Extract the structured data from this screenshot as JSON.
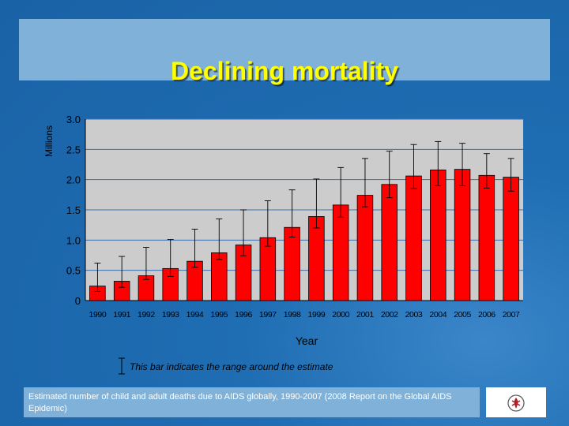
{
  "title": "Declining mortality",
  "legend_text": "This bar indicates the range around the estimate",
  "footer": "Estimated number of child and adult deaths due to AIDS globally, 1990-2007 (2008 Report on the Global AIDS Epidemic)",
  "logo": {
    "icon": "unaids-emblem-icon",
    "color": "#b01e23"
  },
  "colors": {
    "bar": "#ff0000",
    "plot_bg": "#cccccc",
    "grid": "#3d6fb0",
    "title": "#ffff00"
  },
  "chart_data": {
    "type": "bar",
    "title": "Declining mortality",
    "xlabel": "Year",
    "ylabel": "Millions",
    "ylim": [
      0,
      3.0
    ],
    "yticks": [
      "0",
      "0.5",
      "1.0",
      "1.5",
      "2.0",
      "2.5",
      "3.0"
    ],
    "ytick_values": [
      0,
      0.5,
      1.0,
      1.5,
      2.0,
      2.5,
      3.0
    ],
    "grid": true,
    "categories": [
      "1990",
      "1991",
      "1992",
      "1993",
      "1994",
      "1995",
      "1996",
      "1997",
      "1998",
      "1999",
      "2000",
      "2001",
      "2002",
      "2003",
      "2004",
      "2005",
      "2006",
      "2007"
    ],
    "values": [
      0.24,
      0.32,
      0.41,
      0.53,
      0.65,
      0.79,
      0.92,
      1.04,
      1.21,
      1.39,
      1.58,
      1.74,
      1.92,
      2.06,
      2.16,
      2.17,
      2.07,
      2.04
    ],
    "lower": [
      0.15,
      0.22,
      0.35,
      0.4,
      0.55,
      0.68,
      0.74,
      0.9,
      1.05,
      1.2,
      1.38,
      1.55,
      1.7,
      1.85,
      1.9,
      1.9,
      1.86,
      1.81
    ],
    "upper": [
      0.62,
      0.73,
      0.88,
      1.01,
      1.18,
      1.35,
      1.5,
      1.65,
      1.83,
      2.01,
      2.2,
      2.35,
      2.47,
      2.58,
      2.63,
      2.6,
      2.43,
      2.35
    ]
  }
}
